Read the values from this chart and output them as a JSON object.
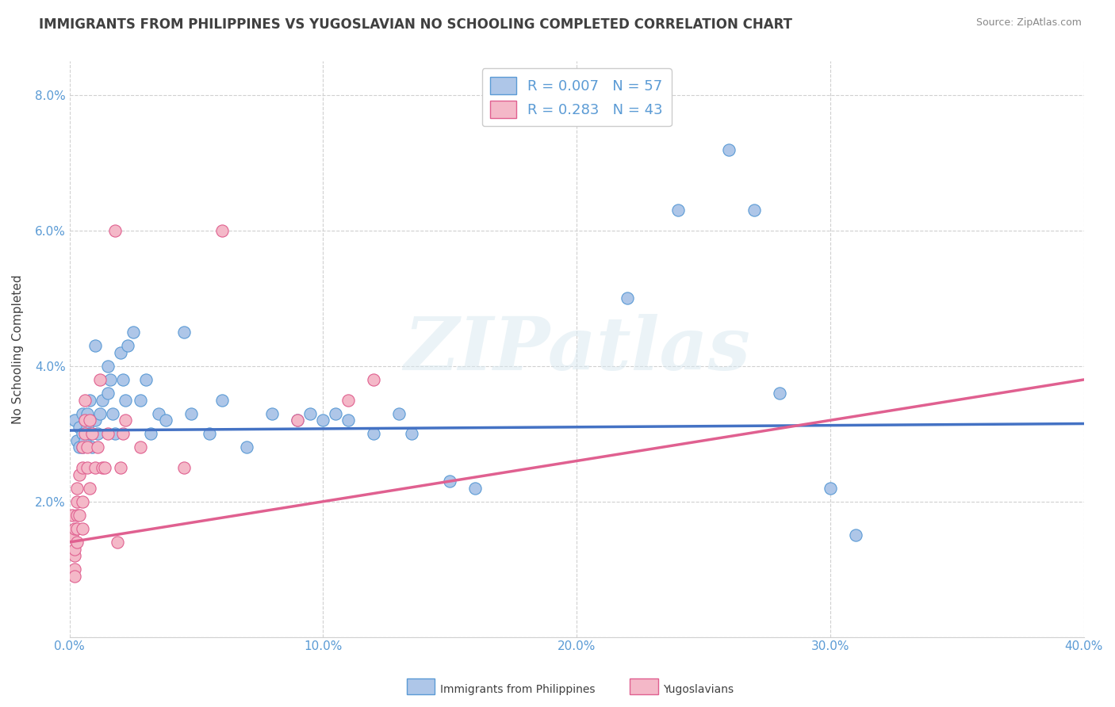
{
  "title": "IMMIGRANTS FROM PHILIPPINES VS YUGOSLAVIAN NO SCHOOLING COMPLETED CORRELATION CHART",
  "source": "Source: ZipAtlas.com",
  "ylabel": "No Schooling Completed",
  "xlim": [
    0.0,
    0.4
  ],
  "ylim": [
    0.0,
    0.085
  ],
  "xtick_vals": [
    0.0,
    0.1,
    0.2,
    0.3,
    0.4
  ],
  "ytick_vals": [
    0.0,
    0.02,
    0.04,
    0.06,
    0.08
  ],
  "legend_entries": [
    {
      "label": "R = 0.007   N = 57",
      "facecolor": "#aec6e8",
      "edgecolor": "#5b9bd5"
    },
    {
      "label": "R = 0.283   N = 43",
      "facecolor": "#f4b8c8",
      "edgecolor": "#e06090"
    }
  ],
  "legend_label_blue": "Immigrants from Philippines",
  "legend_label_pink": "Yugoslavians",
  "blue_scatter": [
    [
      0.002,
      0.032
    ],
    [
      0.003,
      0.029
    ],
    [
      0.004,
      0.031
    ],
    [
      0.004,
      0.028
    ],
    [
      0.005,
      0.033
    ],
    [
      0.005,
      0.03
    ],
    [
      0.005,
      0.028
    ],
    [
      0.006,
      0.032
    ],
    [
      0.006,
      0.029
    ],
    [
      0.007,
      0.031
    ],
    [
      0.007,
      0.033
    ],
    [
      0.008,
      0.03
    ],
    [
      0.008,
      0.035
    ],
    [
      0.009,
      0.028
    ],
    [
      0.01,
      0.043
    ],
    [
      0.01,
      0.032
    ],
    [
      0.011,
      0.03
    ],
    [
      0.012,
      0.033
    ],
    [
      0.013,
      0.035
    ],
    [
      0.015,
      0.04
    ],
    [
      0.015,
      0.036
    ],
    [
      0.016,
      0.038
    ],
    [
      0.017,
      0.033
    ],
    [
      0.018,
      0.03
    ],
    [
      0.02,
      0.042
    ],
    [
      0.021,
      0.038
    ],
    [
      0.022,
      0.035
    ],
    [
      0.023,
      0.043
    ],
    [
      0.025,
      0.045
    ],
    [
      0.028,
      0.035
    ],
    [
      0.03,
      0.038
    ],
    [
      0.032,
      0.03
    ],
    [
      0.035,
      0.033
    ],
    [
      0.038,
      0.032
    ],
    [
      0.045,
      0.045
    ],
    [
      0.048,
      0.033
    ],
    [
      0.055,
      0.03
    ],
    [
      0.06,
      0.035
    ],
    [
      0.07,
      0.028
    ],
    [
      0.08,
      0.033
    ],
    [
      0.09,
      0.032
    ],
    [
      0.095,
      0.033
    ],
    [
      0.1,
      0.032
    ],
    [
      0.105,
      0.033
    ],
    [
      0.11,
      0.032
    ],
    [
      0.12,
      0.03
    ],
    [
      0.13,
      0.033
    ],
    [
      0.135,
      0.03
    ],
    [
      0.15,
      0.023
    ],
    [
      0.16,
      0.022
    ],
    [
      0.22,
      0.05
    ],
    [
      0.24,
      0.063
    ],
    [
      0.26,
      0.072
    ],
    [
      0.27,
      0.063
    ],
    [
      0.28,
      0.036
    ],
    [
      0.3,
      0.022
    ],
    [
      0.31,
      0.015
    ]
  ],
  "pink_scatter": [
    [
      0.001,
      0.018
    ],
    [
      0.001,
      0.015
    ],
    [
      0.002,
      0.012
    ],
    [
      0.002,
      0.016
    ],
    [
      0.002,
      0.013
    ],
    [
      0.002,
      0.01
    ],
    [
      0.002,
      0.009
    ],
    [
      0.003,
      0.014
    ],
    [
      0.003,
      0.016
    ],
    [
      0.003,
      0.02
    ],
    [
      0.003,
      0.018
    ],
    [
      0.003,
      0.022
    ],
    [
      0.004,
      0.018
    ],
    [
      0.004,
      0.024
    ],
    [
      0.005,
      0.02
    ],
    [
      0.005,
      0.016
    ],
    [
      0.005,
      0.025
    ],
    [
      0.005,
      0.028
    ],
    [
      0.006,
      0.03
    ],
    [
      0.006,
      0.032
    ],
    [
      0.006,
      0.035
    ],
    [
      0.007,
      0.028
    ],
    [
      0.007,
      0.025
    ],
    [
      0.008,
      0.022
    ],
    [
      0.008,
      0.032
    ],
    [
      0.009,
      0.03
    ],
    [
      0.01,
      0.025
    ],
    [
      0.011,
      0.028
    ],
    [
      0.012,
      0.038
    ],
    [
      0.013,
      0.025
    ],
    [
      0.014,
      0.025
    ],
    [
      0.015,
      0.03
    ],
    [
      0.018,
      0.06
    ],
    [
      0.019,
      0.014
    ],
    [
      0.02,
      0.025
    ],
    [
      0.021,
      0.03
    ],
    [
      0.022,
      0.032
    ],
    [
      0.028,
      0.028
    ],
    [
      0.045,
      0.025
    ],
    [
      0.06,
      0.06
    ],
    [
      0.09,
      0.032
    ],
    [
      0.11,
      0.035
    ],
    [
      0.12,
      0.038
    ]
  ],
  "blue_line": [
    [
      0.0,
      0.0305
    ],
    [
      0.4,
      0.0315
    ]
  ],
  "pink_line": [
    [
      0.0,
      0.014
    ],
    [
      0.4,
      0.038
    ]
  ],
  "blue_line_color": "#4472c4",
  "pink_line_color": "#e06090",
  "blue_dot_facecolor": "#aec6e8",
  "blue_dot_edgecolor": "#5b9bd5",
  "pink_dot_facecolor": "#f4b8c8",
  "pink_dot_edgecolor": "#e06090",
  "watermark_text": "ZIPatlas",
  "bg_color": "#ffffff",
  "grid_color": "#d0d0d0",
  "title_color": "#404040",
  "tick_label_color": "#5b9bd5"
}
